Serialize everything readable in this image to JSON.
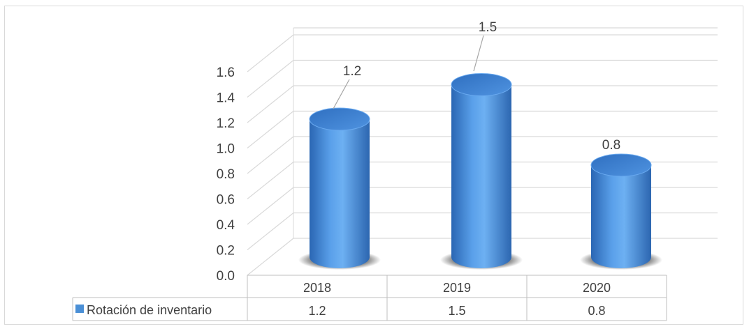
{
  "chart_data": {
    "type": "bar",
    "style": "3d-cylinder",
    "categories": [
      "2018",
      "2019",
      "2020"
    ],
    "series": [
      {
        "name": "Rotación de inventario",
        "values": [
          1.2,
          1.5,
          0.8
        ],
        "color": "#4a8fd6"
      }
    ],
    "data_labels": [
      "1.2",
      "1.5",
      "0.8"
    ],
    "yticks": [
      "0.0",
      "0.2",
      "0.4",
      "0.6",
      "0.8",
      "1.0",
      "1.2",
      "1.4",
      "1.6"
    ],
    "ylim": [
      0,
      1.6
    ],
    "grid": true,
    "legend": "data-table-left",
    "table_values": [
      "1.2",
      "1.5",
      "0.8"
    ]
  }
}
